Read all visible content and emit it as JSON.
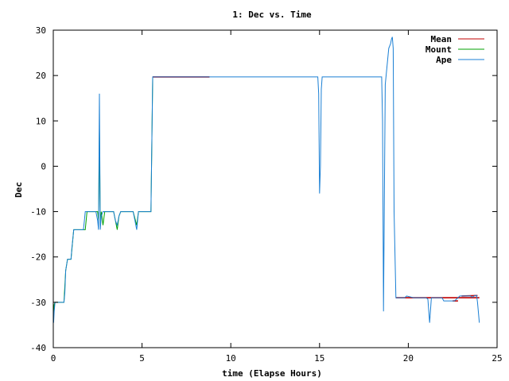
{
  "chart_data": {
    "type": "line",
    "title": "1: Dec vs. Time",
    "xlabel": "time (Elapse Hours)",
    "ylabel": "Dec",
    "xlim": [
      0,
      25
    ],
    "ylim": [
      -40,
      30
    ],
    "xticks": [
      0,
      5,
      10,
      15,
      20,
      25
    ],
    "yticks": [
      -40,
      -30,
      -20,
      -10,
      0,
      10,
      20,
      30
    ],
    "grid": false,
    "legend": "top-right",
    "series": [
      {
        "name": "Mean",
        "color": "#c00000",
        "segments": [
          [
            [
              5.6,
              19.7
            ],
            [
              8.8,
              19.7
            ]
          ],
          [
            [
              19.3,
              -29.0
            ],
            [
              24.0,
              -29.0
            ]
          ],
          [
            [
              22.5,
              -29.7
            ],
            [
              22.8,
              -29.7
            ]
          ],
          [
            [
              23.0,
              -28.6
            ],
            [
              23.9,
              -28.5
            ]
          ]
        ]
      },
      {
        "name": "Mount",
        "color": "#00a000",
        "x": [
          0.0,
          0.05,
          0.1,
          0.6,
          0.7,
          0.8,
          1.0,
          1.1,
          1.15,
          1.8,
          1.9,
          2.5,
          2.55,
          2.6,
          2.65,
          2.7,
          2.8,
          2.9,
          3.0,
          3.4,
          3.6,
          3.7,
          3.8,
          4.5,
          4.7,
          4.8,
          4.9,
          5.5,
          5.6
        ],
        "y": [
          -34.0,
          -30.5,
          -30.0,
          -30.0,
          -23.0,
          -20.5,
          -20.5,
          -16.0,
          -14.0,
          -14.0,
          -10.0,
          -10.0,
          -12.0,
          8.0,
          -13.0,
          -10.0,
          -13.0,
          -10.0,
          -10.0,
          -10.0,
          -14.0,
          -11.0,
          -10.0,
          -10.0,
          -13.0,
          -10.0,
          -10.0,
          -10.0,
          19.7
        ]
      },
      {
        "name": "Ape",
        "color": "#1a7fd4",
        "x": [
          0.0,
          0.02,
          0.05,
          0.1,
          0.6,
          0.65,
          0.7,
          0.8,
          1.0,
          1.05,
          1.1,
          1.15,
          1.7,
          1.75,
          1.8,
          1.9,
          2.4,
          2.5,
          2.55,
          2.6,
          2.65,
          2.7,
          2.8,
          2.9,
          3.4,
          3.5,
          3.6,
          3.7,
          3.8,
          4.5,
          4.6,
          4.7,
          4.8,
          4.9,
          5.5,
          5.6,
          8.8,
          14.9,
          14.95,
          15.0,
          15.05,
          15.1,
          15.15,
          15.2,
          18.5,
          18.55,
          18.6,
          18.7,
          18.75,
          18.8,
          18.9,
          19.0,
          19.05,
          19.1,
          19.15,
          19.2,
          19.3,
          19.8,
          19.9,
          20.3,
          21.0,
          21.1,
          21.2,
          21.3,
          21.4,
          21.5,
          21.9,
          22.0,
          22.5,
          22.6,
          22.8,
          22.9,
          23.0,
          23.5,
          23.6,
          23.7,
          23.8,
          23.85,
          23.9,
          24.0
        ],
        "y": [
          -34.0,
          -34.5,
          -32.0,
          -30.0,
          -30.0,
          -28.0,
          -23.0,
          -20.5,
          -20.5,
          -18.0,
          -16.0,
          -14.0,
          -14.0,
          -12.0,
          -10.0,
          -10.0,
          -10.0,
          -12.0,
          -14.0,
          16.0,
          -14.0,
          -11.0,
          -10.0,
          -10.0,
          -10.0,
          -12.0,
          -13.0,
          -11.0,
          -10.0,
          -10.0,
          -12.0,
          -14.0,
          -10.0,
          -10.0,
          -10.0,
          19.7,
          19.7,
          19.7,
          16.0,
          -6.0,
          0.0,
          17.0,
          19.7,
          19.7,
          19.7,
          10.0,
          -32.0,
          18.0,
          20.0,
          22.0,
          26.0,
          27.0,
          28.0,
          28.5,
          26.0,
          -10.0,
          -29.0,
          -29.0,
          -28.6,
          -29.0,
          -29.0,
          -29.3,
          -34.5,
          -29.0,
          -29.0,
          -29.0,
          -29.0,
          -29.7,
          -29.7,
          -29.7,
          -29.0,
          -28.6,
          -28.6,
          -28.6,
          -28.9,
          -28.6,
          -28.5,
          -28.5,
          -30.0,
          -34.5
        ]
      }
    ]
  }
}
